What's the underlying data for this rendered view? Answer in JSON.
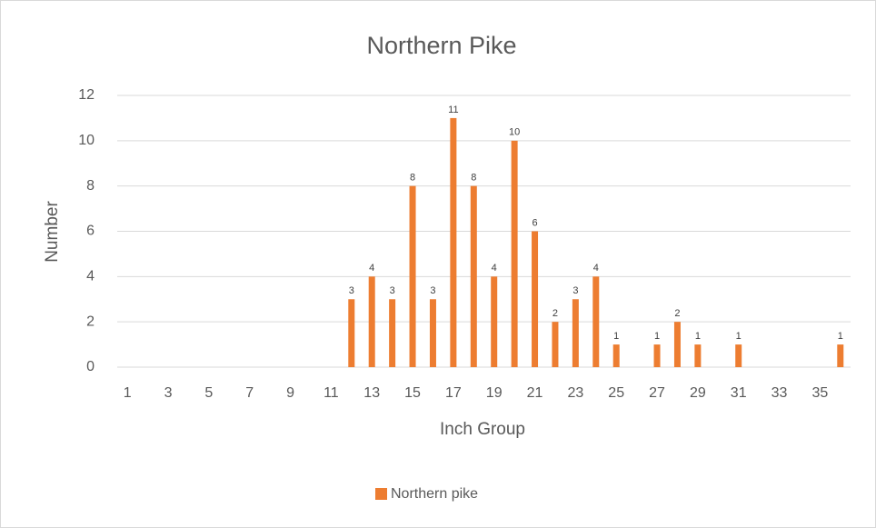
{
  "chart_data": {
    "type": "bar",
    "title": "Northern Pike",
    "x_label": "Inch Group",
    "y_label": "Number",
    "categories": [
      1,
      null,
      3,
      null,
      5,
      null,
      7,
      null,
      9,
      null,
      11,
      null,
      13,
      null,
      15,
      null,
      17,
      null,
      19,
      null,
      21,
      null,
      23,
      null,
      25,
      null,
      27,
      null,
      29,
      null,
      31,
      null,
      33,
      null,
      35,
      null
    ],
    "series": [
      {
        "name": "Northern pike",
        "color": "#ed7d31",
        "values": [
          null,
          null,
          null,
          null,
          null,
          null,
          null,
          null,
          null,
          null,
          null,
          3,
          4,
          3,
          8,
          3,
          11,
          8,
          4,
          10,
          6,
          2,
          3,
          4,
          1,
          null,
          1,
          2,
          1,
          null,
          1,
          null,
          null,
          null,
          null,
          1
        ]
      }
    ],
    "ylim": [
      0,
      12
    ],
    "yticks": [
      0,
      2,
      4,
      6,
      8,
      10,
      12
    ],
    "grid": true,
    "legend": "bottom"
  }
}
